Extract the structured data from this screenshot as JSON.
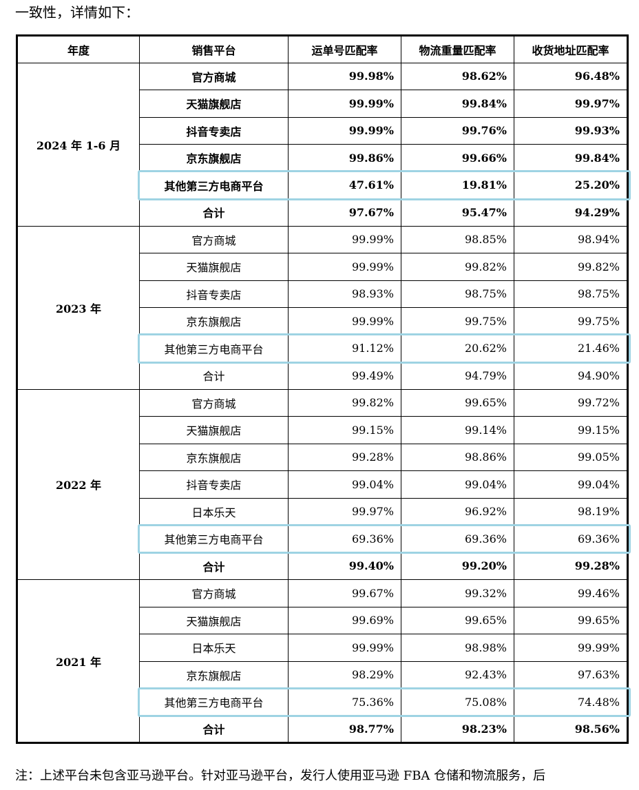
{
  "intro_text": "一致性，详情如下：",
  "headers": [
    "年度",
    "销售平台",
    "运单号匹配率",
    "物流重量匹配率",
    "收货地址匹配率"
  ],
  "groups": [
    {
      "year": "2024 年 1-6 月",
      "bold": true,
      "rows": [
        [
          "官方商城",
          "99.98%",
          "98.62%",
          "96.48%"
        ],
        [
          "天猫旗舰店",
          "99.99%",
          "99.84%",
          "99.97%"
        ],
        [
          "抖音专卖店",
          "99.99%",
          "99.76%",
          "99.93%"
        ],
        [
          "京东旗舰店",
          "99.86%",
          "99.66%",
          "99.84%"
        ],
        [
          "其他第三方电商平台",
          "47.61%",
          "19.81%",
          "25.20%"
        ],
        [
          "合计",
          "97.67%",
          "95.47%",
          "94.29%"
        ]
      ]
    },
    {
      "year": "2023 年",
      "bold": false,
      "rows": [
        [
          "官方商城",
          "99.99%",
          "98.85%",
          "98.94%"
        ],
        [
          "天猫旗舰店",
          "99.99%",
          "99.82%",
          "99.82%"
        ],
        [
          "抖音专卖店",
          "98.93%",
          "98.75%",
          "98.75%"
        ],
        [
          "京东旗舰店",
          "99.99%",
          "99.75%",
          "99.75%"
        ],
        [
          "其他第三方电商平台",
          "91.12%",
          "20.62%",
          "21.46%"
        ],
        [
          "合计",
          "99.49%",
          "94.79%",
          "94.90%"
        ]
      ]
    },
    {
      "year": "2022 年",
      "bold": false,
      "total_bold": true,
      "rows": [
        [
          "官方商城",
          "99.82%",
          "99.65%",
          "99.72%"
        ],
        [
          "天猫旗舰店",
          "99.15%",
          "99.14%",
          "99.15%"
        ],
        [
          "京东旗舰店",
          "99.28%",
          "98.86%",
          "99.05%"
        ],
        [
          "抖音专卖店",
          "99.04%",
          "99.04%",
          "99.04%"
        ],
        [
          "日本乐天",
          "99.97%",
          "96.92%",
          "98.19%"
        ],
        [
          "其他第三方电商平台",
          "69.36%",
          "69.36%",
          "69.36%"
        ],
        [
          "合计",
          "99.40%",
          "99.20%",
          "99.28%"
        ]
      ]
    },
    {
      "year": "2021 年",
      "bold": false,
      "total_bold": true,
      "rows": [
        [
          "官方商城",
          "99.67%",
          "99.32%",
          "99.46%"
        ],
        [
          "天猫旗舰店",
          "99.69%",
          "99.65%",
          "99.65%"
        ],
        [
          "日本乐天",
          "99.99%",
          "98.98%",
          "99.99%"
        ],
        [
          "京东旗舰店",
          "98.29%",
          "92.43%",
          "97.63%"
        ],
        [
          "其他第三方电商平台",
          "75.36%",
          "75.08%",
          "74.48%"
        ],
        [
          "合计",
          "98.77%",
          "98.23%",
          "98.56%"
        ]
      ]
    }
  ],
  "highlight_color": "#9ed3e3",
  "note_text": "注：上述平台未包含亚马逊平台。针对亚马逊平台，发行人使用亚马逊 FBA 仓储和物流服务，后"
}
